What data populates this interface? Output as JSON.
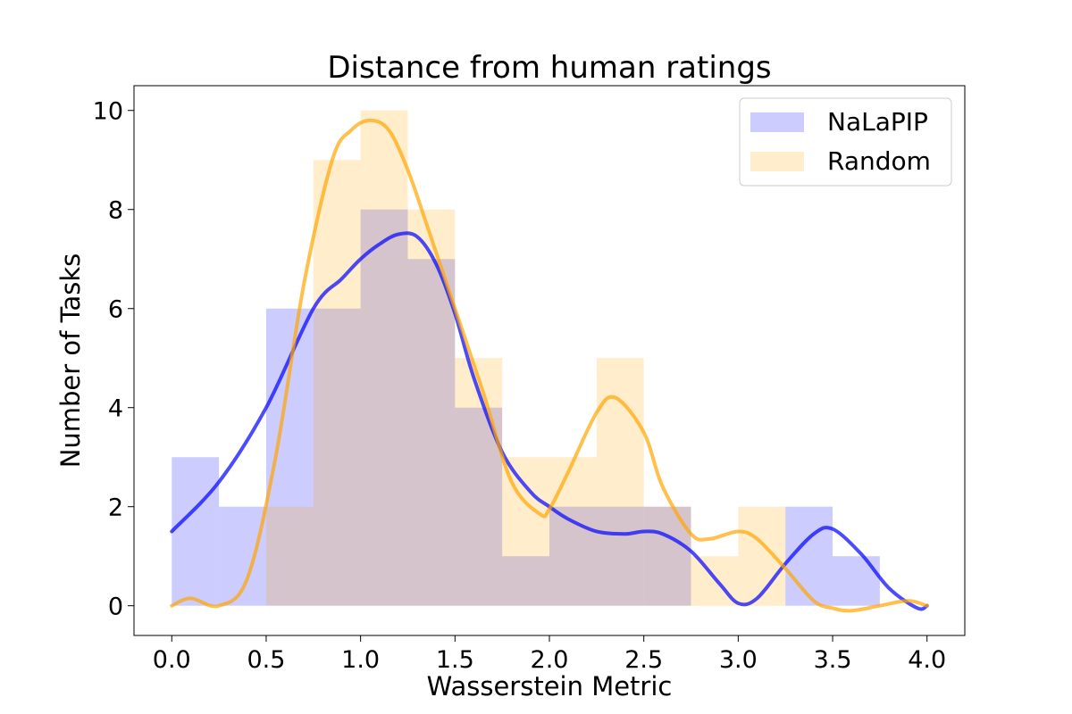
{
  "chart_data": {
    "type": "bar",
    "title": "Distance from human ratings",
    "xlabel": "Wasserstein Metric",
    "ylabel": "Number of Tasks",
    "xlim": [
      -0.2,
      4.2
    ],
    "ylim": [
      -0.6,
      10.5
    ],
    "xticks": [
      0.0,
      0.5,
      1.0,
      1.5,
      2.0,
      2.5,
      3.0,
      3.5,
      4.0
    ],
    "xtick_labels": [
      "0.0",
      "0.5",
      "1.0",
      "1.5",
      "2.0",
      "2.5",
      "3.0",
      "3.5",
      "4.0"
    ],
    "yticks": [
      0,
      2,
      4,
      6,
      8,
      10
    ],
    "ytick_labels": [
      "0",
      "2",
      "4",
      "6",
      "8",
      "10"
    ],
    "bin_edges": [
      0.0,
      0.25,
      0.5,
      0.75,
      1.0,
      1.25,
      1.5,
      1.75,
      2.0,
      2.25,
      2.5,
      2.75,
      3.0,
      3.25,
      3.5,
      3.75,
      4.0
    ],
    "legend_position": "top-right",
    "series": [
      {
        "name": "NaLaPIP",
        "color": "#0000ff",
        "bar_alpha": 0.2,
        "counts": [
          3,
          2,
          6,
          6,
          8,
          7,
          4,
          1,
          2,
          2,
          2,
          0,
          0,
          2,
          1,
          0
        ],
        "kde": {
          "x": [
            0.0,
            0.25,
            0.5,
            0.75,
            0.9,
            1.0,
            1.1,
            1.2,
            1.3,
            1.4,
            1.5,
            1.6,
            1.75,
            1.9,
            2.0,
            2.1,
            2.25,
            2.4,
            2.5,
            2.6,
            2.75,
            2.9,
            3.0,
            3.1,
            3.25,
            3.4,
            3.5,
            3.65,
            3.8,
            3.95,
            4.0
          ],
          "y": [
            1.5,
            2.5,
            4.0,
            6.0,
            6.6,
            7.0,
            7.3,
            7.5,
            7.45,
            6.9,
            5.9,
            4.6,
            3.1,
            2.3,
            2.0,
            1.75,
            1.5,
            1.45,
            1.5,
            1.45,
            1.1,
            0.45,
            0.05,
            0.15,
            0.85,
            1.45,
            1.55,
            1.05,
            0.35,
            -0.05,
            0.0
          ]
        }
      },
      {
        "name": "Random",
        "color": "#ffa500",
        "bar_alpha": 0.2,
        "counts": [
          0,
          0,
          2,
          9,
          10,
          8,
          5,
          3,
          3,
          5,
          2,
          1,
          2,
          0,
          0,
          0
        ],
        "kde": {
          "x": [
            0.0,
            0.1,
            0.25,
            0.4,
            0.55,
            0.7,
            0.85,
            0.95,
            1.05,
            1.15,
            1.25,
            1.35,
            1.5,
            1.65,
            1.8,
            1.95,
            2.0,
            2.1,
            2.25,
            2.35,
            2.5,
            2.6,
            2.75,
            2.85,
            3.0,
            3.1,
            3.25,
            3.4,
            3.5,
            3.6,
            3.75,
            3.9,
            4.0
          ],
          "y": [
            0.0,
            0.15,
            0.0,
            0.55,
            3.0,
            6.5,
            9.0,
            9.6,
            9.8,
            9.6,
            8.8,
            7.7,
            6.0,
            4.3,
            2.5,
            1.85,
            1.95,
            2.7,
            3.9,
            4.2,
            3.5,
            2.4,
            1.45,
            1.35,
            1.5,
            1.35,
            0.75,
            0.1,
            -0.05,
            -0.1,
            0.0,
            0.1,
            0.0
          ]
        }
      }
    ]
  }
}
